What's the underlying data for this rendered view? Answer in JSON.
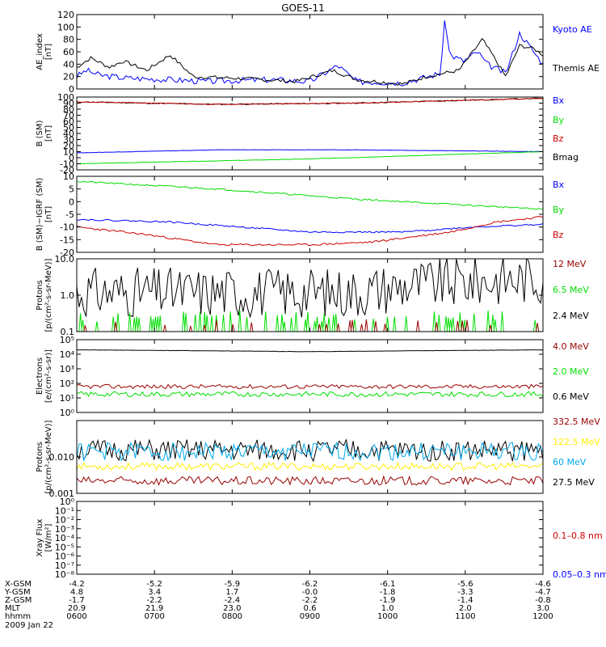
{
  "title": "GOES-11",
  "colors": {
    "black": "#000000",
    "blue": "#0000ff",
    "green": "#00dd00",
    "red": "#cc0000",
    "darkred": "#990000",
    "yellow": "#ffee00",
    "cyan": "#00aaee"
  },
  "chart_data": [
    {
      "type": "line",
      "ylabel": [
        "AE_index",
        "[nT]"
      ],
      "ylim": [
        0,
        120
      ],
      "yticks": [
        {
          "v": 0,
          "t": "0"
        },
        {
          "v": 20,
          "t": "20"
        },
        {
          "v": 40,
          "t": "40"
        },
        {
          "v": 60,
          "t": "60"
        },
        {
          "v": 80,
          "t": "80"
        },
        {
          "v": 100,
          "t": "100"
        },
        {
          "v": 120,
          "t": "120"
        }
      ],
      "legend": [
        {
          "text": "Kyoto AE",
          "color": "#0000ff"
        },
        {
          "text": "Themis AE",
          "color": "#000000"
        }
      ],
      "series": [
        {
          "name": "Kyoto AE",
          "color": "#0000ff",
          "kind": "keys",
          "keys": [
            [
              0,
              20
            ],
            [
              0.02,
              30
            ],
            [
              0.05,
              22
            ],
            [
              0.1,
              18
            ],
            [
              0.2,
              15
            ],
            [
              0.28,
              12
            ],
            [
              0.35,
              14
            ],
            [
              0.42,
              15
            ],
            [
              0.5,
              12
            ],
            [
              0.56,
              38
            ],
            [
              0.6,
              12
            ],
            [
              0.7,
              10
            ],
            [
              0.78,
              25
            ],
            [
              0.79,
              115
            ],
            [
              0.8,
              55
            ],
            [
              0.83,
              45
            ],
            [
              0.86,
              60
            ],
            [
              0.88,
              40
            ],
            [
              0.92,
              25
            ],
            [
              0.95,
              90
            ],
            [
              0.97,
              70
            ],
            [
              1,
              40
            ]
          ],
          "noise": 5,
          "seed": 3
        },
        {
          "name": "Themis AE",
          "color": "#000000",
          "kind": "keys",
          "keys": [
            [
              0,
              35
            ],
            [
              0.03,
              50
            ],
            [
              0.07,
              35
            ],
            [
              0.1,
              45
            ],
            [
              0.15,
              30
            ],
            [
              0.2,
              55
            ],
            [
              0.25,
              20
            ],
            [
              0.32,
              18
            ],
            [
              0.4,
              15
            ],
            [
              0.47,
              12
            ],
            [
              0.55,
              30
            ],
            [
              0.6,
              15
            ],
            [
              0.7,
              8
            ],
            [
              0.75,
              20
            ],
            [
              0.82,
              30
            ],
            [
              0.87,
              80
            ],
            [
              0.9,
              45
            ],
            [
              0.92,
              20
            ],
            [
              0.95,
              70
            ],
            [
              0.98,
              65
            ],
            [
              1,
              55
            ]
          ],
          "noise": 3,
          "seed": 7
        }
      ]
    },
    {
      "type": "line",
      "ylabel": [
        "B (SM)",
        "[nT]"
      ],
      "ylim": [
        -20,
        100
      ],
      "yticks": [
        {
          "v": -20,
          "t": "-20"
        },
        {
          "v": -10,
          "t": "-10"
        },
        {
          "v": 0,
          "t": "0"
        },
        {
          "v": 10,
          "t": "10"
        },
        {
          "v": 20,
          "t": "20"
        },
        {
          "v": 30,
          "t": "30"
        },
        {
          "v": 40,
          "t": "40"
        },
        {
          "v": 50,
          "t": "50"
        },
        {
          "v": 60,
          "t": "60"
        },
        {
          "v": 70,
          "t": "70"
        },
        {
          "v": 80,
          "t": "80"
        },
        {
          "v": 90,
          "t": "90"
        },
        {
          "v": 100,
          "t": "100"
        }
      ],
      "legend": [
        {
          "text": "Bx",
          "color": "#0000ff"
        },
        {
          "text": "By",
          "color": "#00dd00"
        },
        {
          "text": "Bz",
          "color": "#cc0000"
        },
        {
          "text": "Bmag",
          "color": "#000000"
        }
      ],
      "series": [
        {
          "name": "Bmag",
          "color": "#000000",
          "kind": "keys",
          "keys": [
            [
              0,
              92
            ],
            [
              0.3,
              88
            ],
            [
              0.6,
              90
            ],
            [
              1,
              98
            ]
          ],
          "noise": 0.8,
          "seed": 11
        },
        {
          "name": "Bz",
          "color": "#cc0000",
          "kind": "keys",
          "keys": [
            [
              0,
              92
            ],
            [
              0.3,
              88
            ],
            [
              0.6,
              90
            ],
            [
              1,
              98
            ]
          ],
          "noise": 0.8,
          "seed": 12
        },
        {
          "name": "Bx",
          "color": "#0000ff",
          "kind": "keys",
          "keys": [
            [
              0,
              8
            ],
            [
              0.3,
              13
            ],
            [
              0.6,
              13
            ],
            [
              1,
              10
            ]
          ],
          "noise": 0.3,
          "seed": 13
        },
        {
          "name": "By",
          "color": "#00dd00",
          "kind": "keys",
          "keys": [
            [
              0,
              -10
            ],
            [
              0.5,
              -2
            ],
            [
              1,
              10
            ]
          ],
          "noise": 0.3,
          "seed": 14
        }
      ]
    },
    {
      "type": "line",
      "ylabel": [
        "B (SM)−IGRF (SM)",
        "[nT]"
      ],
      "ylim": [
        -20,
        10
      ],
      "yticks": [
        {
          "v": -20,
          "t": "-20"
        },
        {
          "v": -15,
          "t": "-15"
        },
        {
          "v": -10,
          "t": "-10"
        },
        {
          "v": -5,
          "t": "-5"
        },
        {
          "v": 0,
          "t": "0"
        },
        {
          "v": 5,
          "t": "5"
        },
        {
          "v": 10,
          "t": "10"
        }
      ],
      "legend": [
        {
          "text": "Bx",
          "color": "#0000ff"
        },
        {
          "text": "By",
          "color": "#00dd00"
        },
        {
          "text": "Bz",
          "color": "#cc0000"
        }
      ],
      "series": [
        {
          "name": "By",
          "color": "#00dd00",
          "kind": "keys",
          "keys": [
            [
              0,
              8
            ],
            [
              0.3,
              5
            ],
            [
              0.6,
              1
            ],
            [
              1,
              -3
            ]
          ],
          "noise": 0.3,
          "seed": 21
        },
        {
          "name": "Bx",
          "color": "#0000ff",
          "kind": "keys",
          "keys": [
            [
              0,
              -7
            ],
            [
              0.2,
              -8
            ],
            [
              0.5,
              -12
            ],
            [
              0.7,
              -12
            ],
            [
              0.85,
              -10
            ],
            [
              1,
              -9
            ]
          ],
          "noise": 0.3,
          "seed": 22
        },
        {
          "name": "Bz",
          "color": "#cc0000",
          "kind": "keys",
          "keys": [
            [
              0,
              -10
            ],
            [
              0.15,
              -13
            ],
            [
              0.3,
              -17
            ],
            [
              0.5,
              -17
            ],
            [
              0.63,
              -16
            ],
            [
              0.8,
              -12
            ],
            [
              0.9,
              -8
            ],
            [
              1,
              -6
            ]
          ],
          "noise": 0.4,
          "seed": 23
        }
      ]
    },
    {
      "type": "line",
      "log": true,
      "ylabel": [
        "Protons",
        "[p/(cm²-s-sr-MeV)]"
      ],
      "ylim": [
        0.1,
        10
      ],
      "yticks": [
        {
          "v": 0.1,
          "t": "0.1"
        },
        {
          "v": 1,
          "t": "1.0"
        },
        {
          "v": 10,
          "t": "10.0"
        }
      ],
      "legend": [
        {
          "text": "12 MeV",
          "color": "#990000"
        },
        {
          "text": "6.5 MeV",
          "color": "#00dd00"
        },
        {
          "text": "2.4 MeV",
          "color": "#000000"
        }
      ],
      "series": [
        {
          "name": "2.4 MeV",
          "color": "#000000",
          "kind": "lognoise",
          "keys": [
            [
              0,
              1.2
            ],
            [
              0.6,
              1.2
            ],
            [
              0.7,
              1.8
            ],
            [
              1,
              3
            ]
          ],
          "amp": 0.7,
          "seed": 31
        },
        {
          "name": "6.5 MeV",
          "color": "#00dd00",
          "kind": "spikes",
          "base": 0.1,
          "top": 0.4,
          "prob": 0.28,
          "seed": 32
        },
        {
          "name": "12 MeV",
          "color": "#990000",
          "kind": "spikes",
          "base": 0.1,
          "top": 0.22,
          "prob": 0.1,
          "seed": 33
        }
      ]
    },
    {
      "type": "line",
      "log": true,
      "ylabel": [
        "Electrons",
        "[e/(cm²-s-sr)]"
      ],
      "ylim": [
        1,
        100000
      ],
      "yticks": [
        {
          "v": 1,
          "t": "10⁰"
        },
        {
          "v": 10,
          "t": "10¹"
        },
        {
          "v": 100,
          "t": "10²"
        },
        {
          "v": 1000,
          "t": "10³"
        },
        {
          "v": 10000,
          "t": "10⁴"
        },
        {
          "v": 100000,
          "t": "10⁵"
        }
      ],
      "legend": [
        {
          "text": "4.0 MeV",
          "color": "#990000"
        },
        {
          "text": "2.0 MeV",
          "color": "#00dd00"
        },
        {
          "text": "0.6 MeV",
          "color": "#000000"
        }
      ],
      "series": [
        {
          "name": "0.6 MeV",
          "color": "#000000",
          "kind": "keys",
          "keys": [
            [
              0,
              20000
            ],
            [
              0.5,
              15000
            ],
            [
              1,
              20000
            ]
          ],
          "noise": 400,
          "seed": 41
        },
        {
          "name": "4.0 MeV",
          "color": "#990000",
          "kind": "lognoise",
          "keys": [
            [
              0,
              60
            ],
            [
              1,
              60
            ]
          ],
          "amp": 0.15,
          "seed": 42
        },
        {
          "name": "2.0 MeV",
          "color": "#00dd00",
          "kind": "lognoise",
          "keys": [
            [
              0,
              18
            ],
            [
              1,
              18
            ]
          ],
          "amp": 0.18,
          "seed": 43
        }
      ]
    },
    {
      "type": "line",
      "log": true,
      "ylabel": [
        "Protons",
        "[p/(cm²-s-sr-MeV)]"
      ],
      "ylim": [
        0.001,
        0.1
      ],
      "yticks": [
        {
          "v": 0.001,
          "t": "0.001"
        },
        {
          "v": 0.01,
          "t": "0.010"
        },
        {
          "v": 0.1,
          "t": ""
        }
      ],
      "legend": [
        {
          "text": "332.5 MeV",
          "color": "#990000"
        },
        {
          "text": "122.5 MeV",
          "color": "#ffee00"
        },
        {
          "text": "60 MeV",
          "color": "#00aaee"
        },
        {
          "text": "27.5 MeV",
          "color": "#000000"
        }
      ],
      "series": [
        {
          "name": "27.5 MeV",
          "color": "#000000",
          "kind": "lognoise",
          "keys": [
            [
              0,
              0.015
            ],
            [
              1,
              0.015
            ]
          ],
          "amp": 0.3,
          "seed": 51
        },
        {
          "name": "60 MeV",
          "color": "#00aaee",
          "kind": "lognoise",
          "keys": [
            [
              0,
              0.014
            ],
            [
              1,
              0.014
            ]
          ],
          "amp": 0.25,
          "seed": 52
        },
        {
          "name": "122.5 MeV",
          "color": "#ffee00",
          "kind": "lognoise",
          "keys": [
            [
              0,
              0.0055
            ],
            [
              1,
              0.0055
            ]
          ],
          "amp": 0.1,
          "seed": 53
        },
        {
          "name": "332.5 MeV",
          "color": "#990000",
          "kind": "lognoise",
          "keys": [
            [
              0,
              0.0022
            ],
            [
              1,
              0.0022
            ]
          ],
          "amp": 0.12,
          "seed": 54
        }
      ]
    },
    {
      "type": "line",
      "log": true,
      "ylabel": [
        "Xray Flux",
        "[W/m²]"
      ],
      "ylim": [
        1e-08,
        1
      ],
      "yticks": [
        {
          "v": 1e-08,
          "t": "10⁻⁸"
        },
        {
          "v": 1e-07,
          "t": "10⁻⁷"
        },
        {
          "v": 1e-06,
          "t": "10⁻⁶"
        },
        {
          "v": 1e-05,
          "t": "10⁻⁵"
        },
        {
          "v": 0.0001,
          "t": "10⁻⁴"
        },
        {
          "v": 0.001,
          "t": "10⁻³"
        },
        {
          "v": 0.01,
          "t": "10⁻²"
        },
        {
          "v": 0.1,
          "t": "10⁻¹"
        },
        {
          "v": 1,
          "t": "10⁰"
        }
      ],
      "legend": [
        {
          "text": "0.1–0.8 nm",
          "color": "#cc0000"
        },
        {
          "text": "0.05–0.3 nm",
          "color": "#0000ff"
        }
      ],
      "series": []
    }
  ],
  "xaxis": {
    "ticks": [
      "0600",
      "0700",
      "0800",
      "0900",
      "1000",
      "1100",
      "1200"
    ],
    "rows": [
      {
        "label": "X-GSM",
        "values": [
          "-4.2",
          "-5.2",
          "-5.9",
          "-6.2",
          "-6.1",
          "-5.6",
          "-4.6"
        ]
      },
      {
        "label": "Y-GSM",
        "values": [
          "4.8",
          "3.4",
          "1.7",
          "-0.0",
          "-1.8",
          "-3.3",
          "-4.7"
        ]
      },
      {
        "label": "Z-GSM",
        "values": [
          "-1.7",
          "-2.2",
          "-2.4",
          "-2.2",
          "-1.9",
          "-1.4",
          "-0.8"
        ]
      },
      {
        "label": "MLT",
        "values": [
          "20.9",
          "21.9",
          "23.0",
          "0.6",
          "1.0",
          "2.0",
          "3.0"
        ]
      },
      {
        "label": "hhmm",
        "values": [
          "0600",
          "0700",
          "0800",
          "0900",
          "1000",
          "1100",
          "1200"
        ]
      }
    ],
    "date": "2009 Jan 22"
  }
}
